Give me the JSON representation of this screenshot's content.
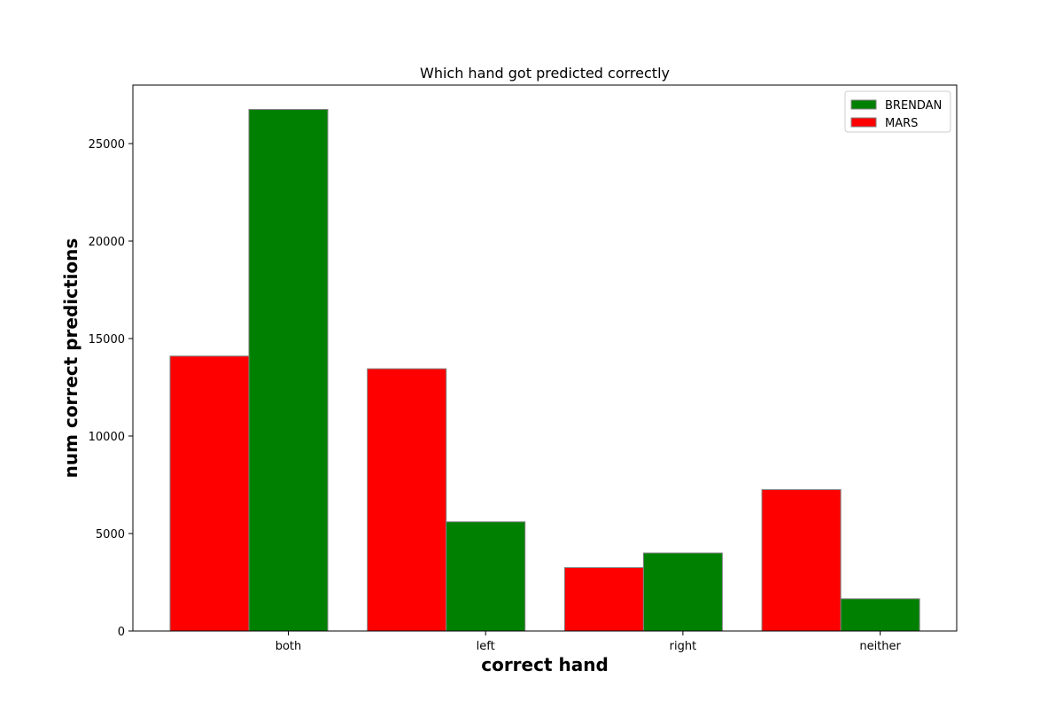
{
  "chart_data": {
    "type": "bar",
    "title": "Which hand got predicted correctly",
    "xlabel": "correct hand",
    "ylabel": "num correct predictions",
    "categories": [
      "both",
      "left",
      "right",
      "neither"
    ],
    "series": [
      {
        "name": "MARS",
        "color": "#ff0000",
        "values": [
          14100,
          13450,
          3250,
          7250
        ]
      },
      {
        "name": "BRENDAN",
        "color": "#008000",
        "values": [
          26750,
          5600,
          4000,
          1650
        ]
      }
    ],
    "ylim": [
      0,
      28000
    ],
    "yticks": [
      0,
      5000,
      10000,
      15000,
      20000,
      25000
    ],
    "grid": false,
    "legend_position": "top-right",
    "legend_order": [
      "BRENDAN",
      "MARS"
    ],
    "bar_edge_color": "#808080"
  }
}
